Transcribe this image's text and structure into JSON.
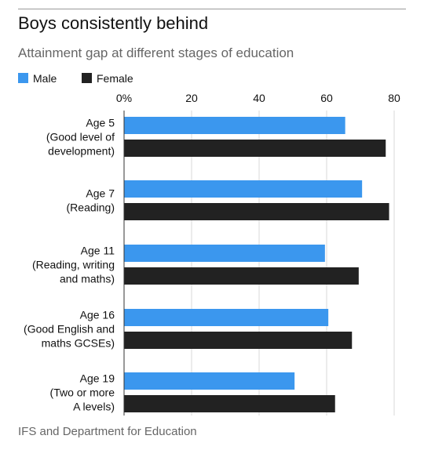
{
  "header": {
    "title": "Boys consistently behind",
    "subtitle": "Attainment gap at different stages of education"
  },
  "footer": {
    "source": "IFS and Department for Education"
  },
  "chart_data": {
    "type": "bar",
    "orientation": "horizontal",
    "categories": [
      [
        "Age 5",
        "(Good level of",
        "development)"
      ],
      [
        "Age 7",
        "(Reading)"
      ],
      [
        "Age 11",
        "(Reading, writing",
        "and maths)"
      ],
      [
        "Age 16",
        "(Good English and",
        "maths GCSEs)"
      ],
      [
        "Age 19",
        "(Two or more",
        "A levels)"
      ]
    ],
    "series": [
      {
        "name": "Male",
        "color": "#3b97ee",
        "values": [
          65.5,
          70.5,
          59.5,
          60.5,
          50.5
        ]
      },
      {
        "name": "Female",
        "color": "#222222",
        "values": [
          77.5,
          78.5,
          69.5,
          67.5,
          62.5
        ]
      }
    ],
    "x_ticks": [
      "0%",
      "20",
      "40",
      "60",
      "80"
    ],
    "x_tick_values": [
      0,
      20,
      40,
      60,
      80
    ],
    "xlim": [
      0,
      80
    ],
    "grid": true,
    "legend_position": "top-left",
    "title": "Boys consistently behind",
    "subtitle": "Attainment gap at different stages of education",
    "xlabel": "",
    "ylabel": ""
  }
}
